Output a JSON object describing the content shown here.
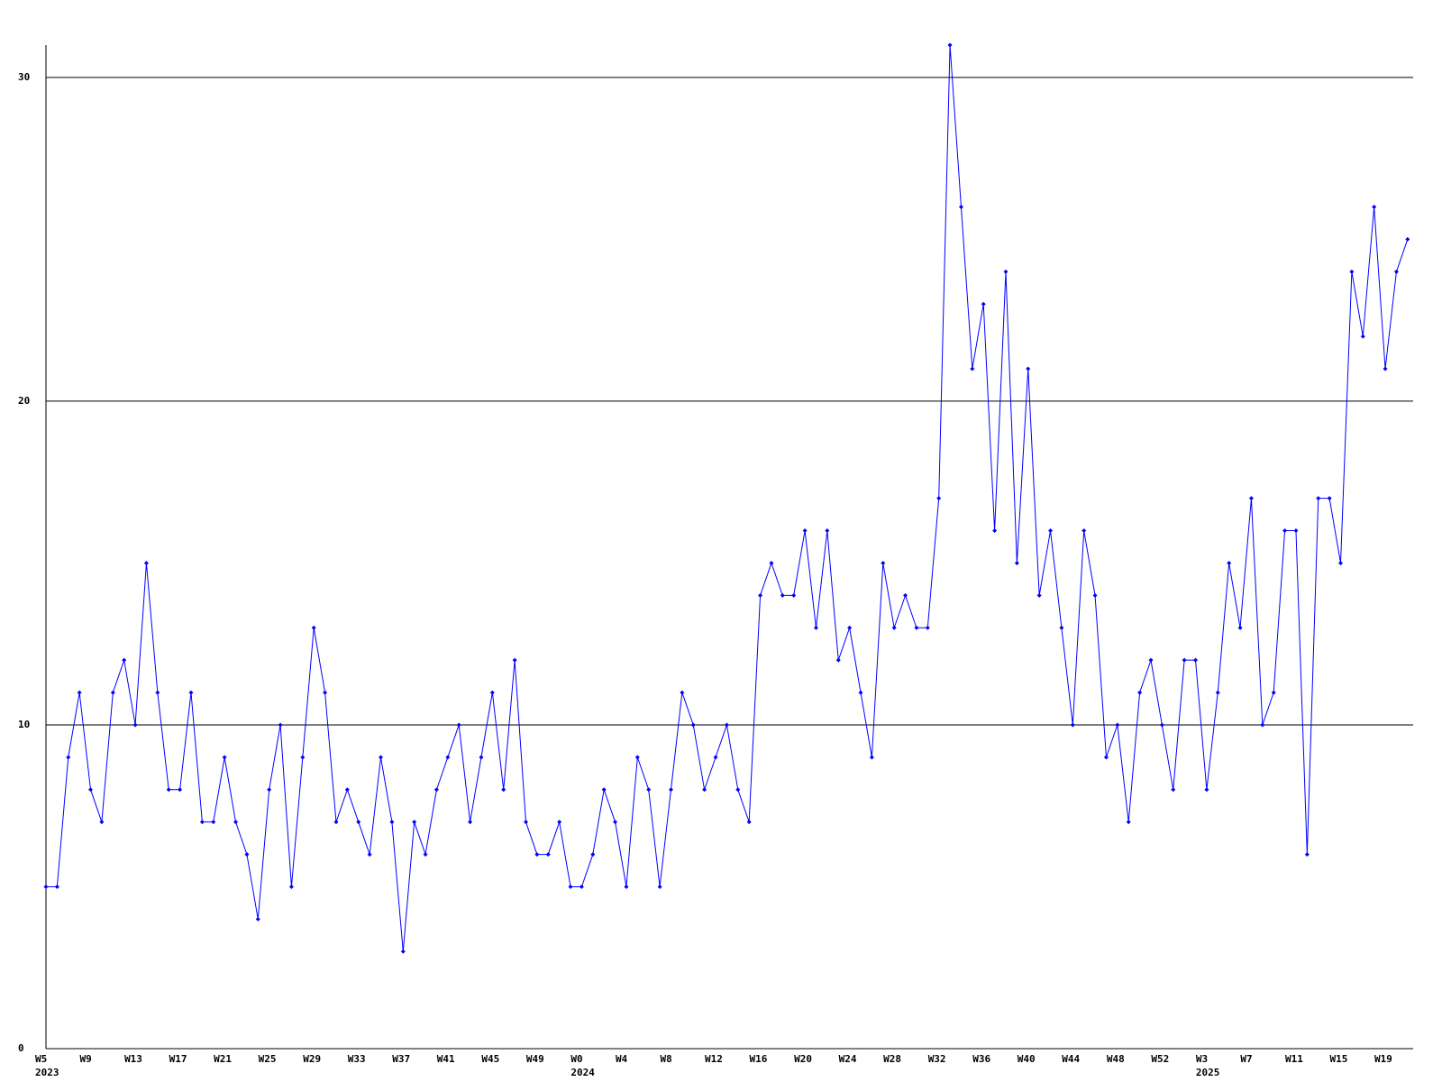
{
  "chart_data": {
    "type": "line",
    "categories": [
      "W5",
      null,
      null,
      null,
      "W9",
      null,
      null,
      null,
      "W13",
      null,
      null,
      null,
      "W17",
      null,
      null,
      null,
      "W21",
      null,
      null,
      null,
      "W25",
      null,
      null,
      null,
      "W29",
      null,
      null,
      null,
      "W33",
      null,
      null,
      null,
      "W37",
      null,
      null,
      null,
      "W41",
      null,
      null,
      null,
      "W45",
      null,
      null,
      null,
      "W49",
      null,
      null,
      null,
      "W0",
      null,
      null,
      null,
      "W4",
      null,
      null,
      null,
      "W8",
      null,
      null,
      null,
      "W12",
      null,
      null,
      null,
      "W16",
      null,
      null,
      null,
      "W20",
      null,
      null,
      null,
      "W24",
      null,
      null,
      null,
      "W28",
      null,
      null,
      null,
      "W32",
      null,
      null,
      null,
      "W36",
      null,
      null,
      null,
      "W40",
      null,
      null,
      null,
      "W44",
      null,
      null,
      null,
      "W48",
      null,
      null,
      null,
      "W52",
      null,
      null,
      null,
      "W3",
      null,
      null,
      null,
      "W7",
      null,
      null,
      null,
      "W11",
      null,
      null,
      null,
      "W15",
      null,
      null,
      null,
      "W19",
      null,
      null
    ],
    "year_labels": [
      "2023",
      null,
      null,
      null,
      null,
      null,
      null,
      null,
      null,
      null,
      null,
      null,
      null,
      null,
      null,
      null,
      null,
      null,
      null,
      null,
      null,
      null,
      null,
      null,
      null,
      null,
      null,
      null,
      null,
      null,
      null,
      null,
      null,
      null,
      null,
      null,
      null,
      null,
      null,
      null,
      null,
      null,
      null,
      null,
      null,
      null,
      null,
      null,
      "2024",
      null,
      null,
      null,
      null,
      null,
      null,
      null,
      null,
      null,
      null,
      null,
      null,
      null,
      null,
      null,
      null,
      null,
      null,
      null,
      null,
      null,
      null,
      null,
      null,
      null,
      null,
      null,
      null,
      null,
      null,
      null,
      null,
      null,
      null,
      null,
      null,
      null,
      null,
      null,
      null,
      null,
      null,
      null,
      null,
      null,
      null,
      null,
      null,
      null,
      null,
      null,
      null,
      null,
      null,
      null,
      "2025",
      null,
      null,
      null,
      null,
      null,
      null,
      null,
      null,
      null,
      null,
      null,
      null,
      null,
      null,
      null,
      null,
      null,
      null
    ],
    "series": [
      {
        "color": "#0000ff",
        "values": [
          5,
          5,
          9,
          11,
          8,
          7,
          11,
          12,
          10,
          15,
          11,
          8,
          8,
          11,
          7,
          7,
          9,
          7,
          6,
          4,
          8,
          10,
          5,
          9,
          13,
          11,
          7,
          8,
          7,
          6,
          9,
          7,
          3,
          7,
          6,
          8,
          9,
          10,
          7,
          9,
          11,
          8,
          12,
          7,
          6,
          6,
          7,
          5,
          5,
          6,
          8,
          7,
          5,
          9,
          8,
          5,
          8,
          11,
          10,
          8,
          9,
          10,
          8,
          7,
          14,
          15,
          14,
          14,
          16,
          13,
          16,
          12,
          13,
          11,
          9,
          15,
          13,
          14,
          13,
          13,
          17,
          31,
          26,
          21,
          23,
          16,
          24,
          15,
          21,
          14,
          16,
          13,
          10,
          16,
          14,
          9,
          10,
          7,
          11,
          12,
          10,
          8,
          12,
          12,
          8,
          11,
          15,
          13,
          17,
          10,
          11,
          16,
          16,
          6,
          17,
          17,
          15,
          24,
          22,
          26,
          21,
          24,
          25
        ]
      }
    ],
    "ylim": [
      0,
      31
    ],
    "yticks": [
      0,
      10,
      20,
      30
    ],
    "grid": true
  }
}
